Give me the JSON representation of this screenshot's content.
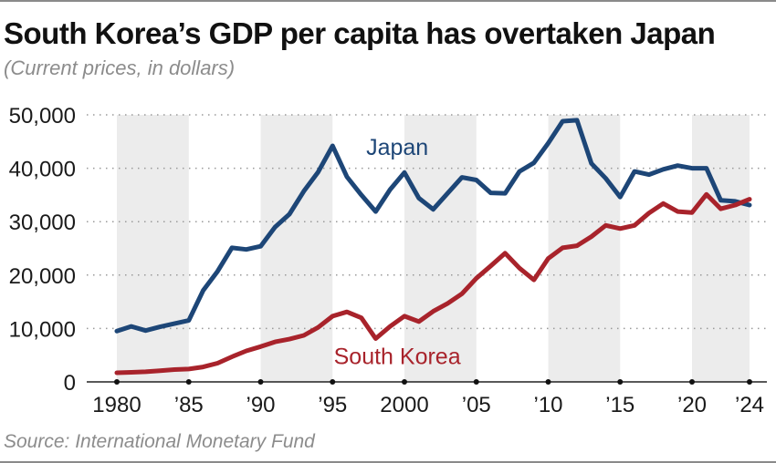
{
  "chart_data": {
    "type": "line",
    "title": "South Korea’s GDP per capita has overtaken Japan",
    "subtitle": "(Current prices, in dollars)",
    "source": "Source: International Monetary Fund",
    "xlabel": "",
    "ylabel": "",
    "xlim": [
      1980,
      2024
    ],
    "ylim": [
      0,
      50000
    ],
    "grid": "horizontal dotted",
    "y_ticks": [
      {
        "value": 0,
        "label": "0"
      },
      {
        "value": 10000,
        "label": "10,000"
      },
      {
        "value": 20000,
        "label": "20,000"
      },
      {
        "value": 30000,
        "label": "30,000"
      },
      {
        "value": 40000,
        "label": "40,000"
      },
      {
        "value": 50000,
        "label": "50,000"
      }
    ],
    "x_ticks": [
      {
        "value": 1980,
        "label": "1980"
      },
      {
        "value": 1985,
        "label": "’85"
      },
      {
        "value": 1990,
        "label": "’90"
      },
      {
        "value": 1995,
        "label": "’95"
      },
      {
        "value": 2000,
        "label": "2000"
      },
      {
        "value": 2005,
        "label": "’05"
      },
      {
        "value": 2010,
        "label": "’10"
      },
      {
        "value": 2015,
        "label": "’15"
      },
      {
        "value": 2020,
        "label": "’20"
      },
      {
        "value": 2024,
        "label": "’24"
      }
    ],
    "shaded_bands": [
      [
        1980,
        1985
      ],
      [
        1990,
        1995
      ],
      [
        2000,
        2005
      ],
      [
        2010,
        2015
      ],
      [
        2020,
        2024
      ]
    ],
    "x": [
      1980,
      1981,
      1982,
      1983,
      1984,
      1985,
      1986,
      1987,
      1988,
      1989,
      1990,
      1991,
      1992,
      1993,
      1994,
      1995,
      1996,
      1997,
      1998,
      1999,
      2000,
      2001,
      2002,
      2003,
      2004,
      2005,
      2006,
      2007,
      2008,
      2009,
      2010,
      2011,
      2012,
      2013,
      2014,
      2015,
      2016,
      2017,
      2018,
      2019,
      2020,
      2021,
      2022,
      2023,
      2024
    ],
    "series": [
      {
        "name": "Japan",
        "color": "#1d4677",
        "label_position": {
          "x": 1999.5,
          "y": 42500
        },
        "values": [
          9500,
          10400,
          9600,
          10300,
          10900,
          11500,
          17100,
          20700,
          25100,
          24800,
          25400,
          29000,
          31400,
          35700,
          39300,
          44200,
          38400,
          35000,
          31900,
          36000,
          39200,
          34400,
          32300,
          35300,
          38300,
          37800,
          35400,
          35300,
          39400,
          41000,
          44700,
          48800,
          49000,
          40900,
          38100,
          34600,
          39400,
          38800,
          39800,
          40500,
          40000,
          40000,
          34000,
          33800,
          33100
        ]
      },
      {
        "name": "South Korea",
        "color": "#a8232b",
        "label_position": {
          "x": 1999.5,
          "y": 3300
        },
        "values": [
          1700,
          1800,
          1900,
          2100,
          2300,
          2400,
          2800,
          3500,
          4700,
          5800,
          6600,
          7500,
          8000,
          8700,
          10200,
          12300,
          13100,
          12000,
          8100,
          10400,
          12300,
          11300,
          13200,
          14700,
          16500,
          19400,
          21700,
          24100,
          21300,
          19100,
          23100,
          25100,
          25500,
          27200,
          29300,
          28700,
          29300,
          31600,
          33400,
          31900,
          31700,
          35100,
          32400,
          33100,
          34200
        ]
      }
    ]
  }
}
